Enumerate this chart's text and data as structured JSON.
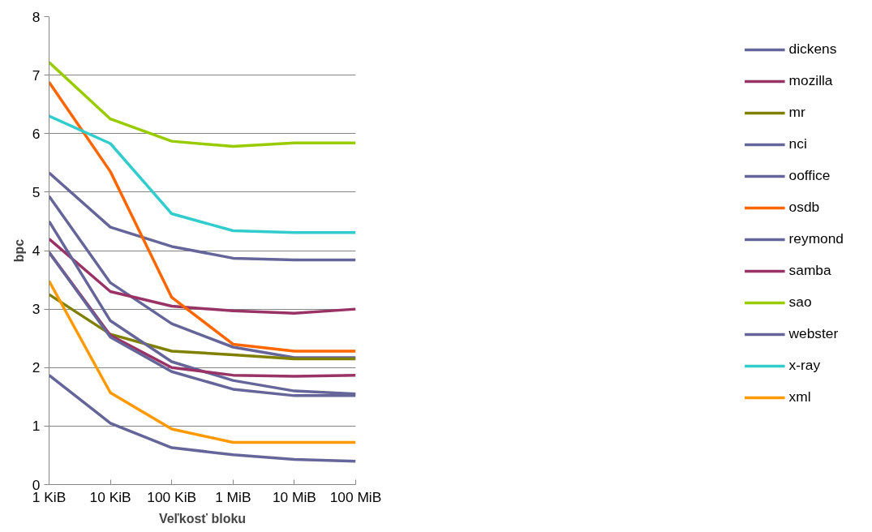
{
  "chart_data": {
    "type": "line",
    "xlabel": "Veľkosť bloku",
    "ylabel": "bpc",
    "categories": [
      "1 KiB",
      "10 KiB",
      "100 KiB",
      "1 MiB",
      "10 MiB",
      "100 MiB"
    ],
    "ylim": [
      0,
      8
    ],
    "yticks": [
      0,
      1,
      2,
      3,
      4,
      5,
      6,
      7,
      8
    ],
    "grid": "y",
    "legend": "right",
    "marker": "none",
    "line_style": "solid",
    "series": [
      {
        "name": "dickens",
        "color": "#65659a",
        "values": [
          4.93,
          3.45,
          2.75,
          2.35,
          2.17,
          2.17
        ]
      },
      {
        "name": "mozilla",
        "color": "#993366",
        "values": [
          4.2,
          3.3,
          3.05,
          2.97,
          2.93,
          3.0
        ]
      },
      {
        "name": "mr",
        "color": "#808000",
        "values": [
          3.25,
          2.57,
          2.28,
          2.22,
          2.15,
          2.15
        ]
      },
      {
        "name": "nci",
        "color": "#65659a",
        "values": [
          1.87,
          1.05,
          0.63,
          0.51,
          0.43,
          0.4
        ]
      },
      {
        "name": "ooffice",
        "color": "#65659a",
        "values": [
          5.33,
          4.4,
          4.07,
          3.87,
          3.84,
          3.84
        ]
      },
      {
        "name": "osdb",
        "color": "#ff6600",
        "values": [
          6.88,
          5.35,
          3.2,
          2.4,
          2.28,
          2.28
        ]
      },
      {
        "name": "reymond",
        "color": "#65659a",
        "values": [
          4.5,
          2.8,
          2.1,
          1.78,
          1.6,
          1.55
        ]
      },
      {
        "name": "samba",
        "color": "#993366",
        "values": [
          3.97,
          2.55,
          2.0,
          1.87,
          1.85,
          1.87
        ]
      },
      {
        "name": "sao",
        "color": "#99cc00",
        "values": [
          7.22,
          6.25,
          5.87,
          5.78,
          5.84,
          5.84
        ]
      },
      {
        "name": "webster",
        "color": "#65659a",
        "values": [
          3.97,
          2.52,
          1.93,
          1.63,
          1.52,
          1.52
        ]
      },
      {
        "name": "x-ray",
        "color": "#33cccc",
        "values": [
          6.3,
          5.83,
          4.63,
          4.34,
          4.31,
          4.31
        ]
      },
      {
        "name": "xml",
        "color": "#ff9900",
        "values": [
          3.48,
          1.57,
          0.95,
          0.72,
          0.72,
          0.72
        ]
      }
    ]
  }
}
